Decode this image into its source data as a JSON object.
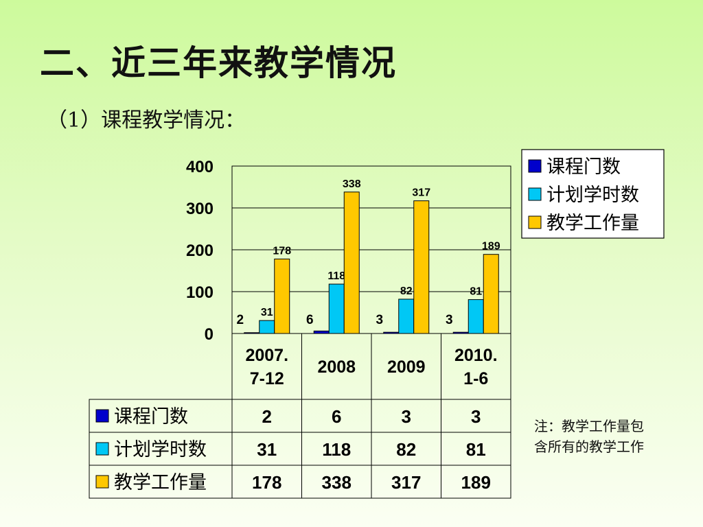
{
  "slide": {
    "title": "二、近三年来教学情况",
    "subtitle": "（1）课程教学情况：",
    "note_lines": [
      "注：教学工作量包",
      "含所有的教学工作"
    ]
  },
  "chart_data": {
    "type": "bar",
    "categories": [
      "2007.\n7-12",
      "2008",
      "2009",
      "2010.\n1-6"
    ],
    "series": [
      {
        "name": "课程门数",
        "values": [
          2,
          6,
          3,
          3
        ],
        "color": "#0000cc"
      },
      {
        "name": "计划学时数",
        "values": [
          31,
          118,
          82,
          81
        ],
        "color": "#00c8f5"
      },
      {
        "name": "教学工作量",
        "values": [
          178,
          338,
          317,
          189
        ],
        "color": "#ffc800"
      }
    ],
    "yticks": [
      0,
      100,
      200,
      300,
      400
    ],
    "ylim": [
      0,
      400
    ],
    "grid": true,
    "legend": "right",
    "data_table": true
  }
}
